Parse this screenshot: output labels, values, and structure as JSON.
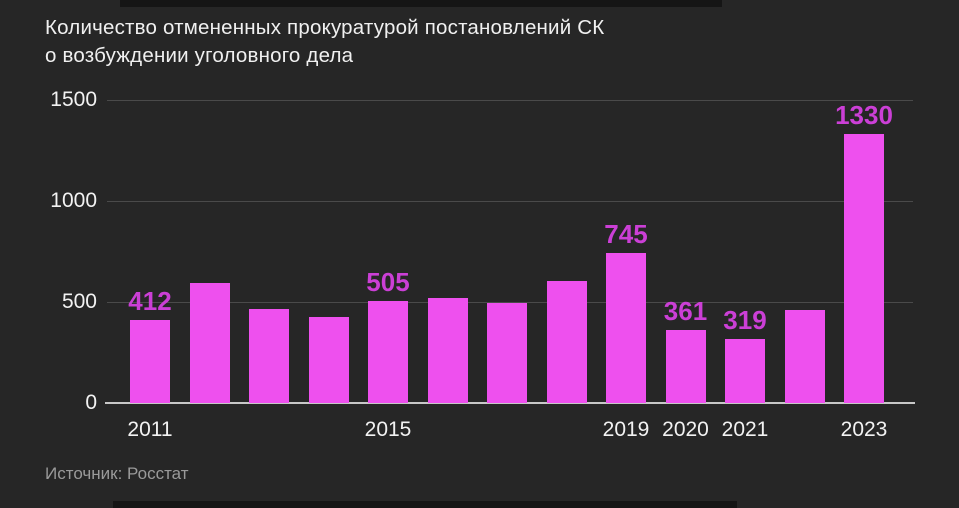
{
  "header": {
    "title_line1": "Количество отмененных прокуратурой постановлений СК",
    "title_line2": "о возбуждении уголовного дела"
  },
  "footer": {
    "source": "Источник: Росстат"
  },
  "colors": {
    "background": "#262626",
    "bar": "#ee50ee",
    "value_label": "#cb3fd6",
    "gridline": "#4a4a4a",
    "axis_line": "#c8c8c8",
    "text": "#f2f2f2",
    "muted_text": "#9a9a9a"
  },
  "chart_data": {
    "type": "bar",
    "title": "Количество отмененных прокуратурой постановлений СК о возбуждении уголовного дела",
    "categories": [
      2011,
      2012,
      2013,
      2014,
      2015,
      2016,
      2017,
      2018,
      2019,
      2020,
      2021,
      2022,
      2023
    ],
    "values": [
      412,
      595,
      465,
      425,
      505,
      520,
      495,
      605,
      745,
      361,
      319,
      460,
      1330
    ],
    "value_labels": [
      412,
      null,
      null,
      null,
      505,
      null,
      null,
      null,
      745,
      361,
      319,
      null,
      1330
    ],
    "x_tick_labels": [
      "2011",
      "2015",
      "2019",
      "2020",
      "2021",
      "2023"
    ],
    "x_tick_years": [
      2011,
      2015,
      2019,
      2020,
      2021,
      2023
    ],
    "y_ticks": [
      0,
      500,
      1000,
      1500
    ],
    "ylim": [
      0,
      1500
    ],
    "xlabel": "",
    "ylabel": "",
    "grid": "horizontal",
    "legend": "none",
    "source": "Источник: Росстат"
  }
}
